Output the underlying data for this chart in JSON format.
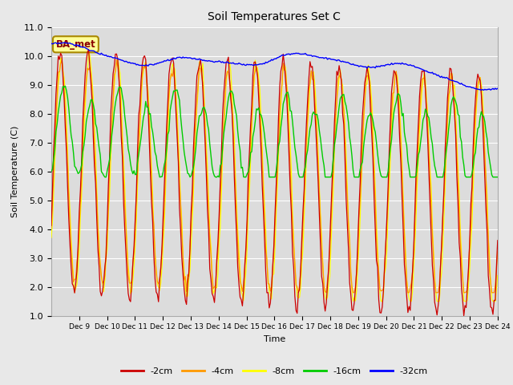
{
  "title": "Soil Temperatures Set C",
  "xlabel": "Time",
  "ylabel": "Soil Temperature (C)",
  "ylim": [
    1.0,
    11.0
  ],
  "yticks": [
    1.0,
    2.0,
    3.0,
    4.0,
    5.0,
    6.0,
    7.0,
    8.0,
    9.0,
    10.0,
    11.0
  ],
  "colors": {
    "-2cm": "#cc0000",
    "-4cm": "#ff9900",
    "-8cm": "#ffff00",
    "-16cm": "#00cc00",
    "-32cm": "#0000ff"
  },
  "legend_label": "BA_met",
  "fig_bg": "#e8e8e8",
  "plot_bg": "#dcdcdc",
  "xtick_labels": [
    "Dec 9",
    "Dec 10",
    "Dec 11",
    "Dec 12",
    "Dec 13",
    "Dec 14",
    "Dec 15",
    "Dec 16",
    "Dec 17",
    "Dec 18",
    "Dec 19",
    "Dec 20",
    "Dec 21",
    "Dec 22",
    "Dec 23",
    "Dec 24"
  ],
  "title_fontsize": 10,
  "axis_fontsize": 8,
  "legend_fontsize": 8
}
